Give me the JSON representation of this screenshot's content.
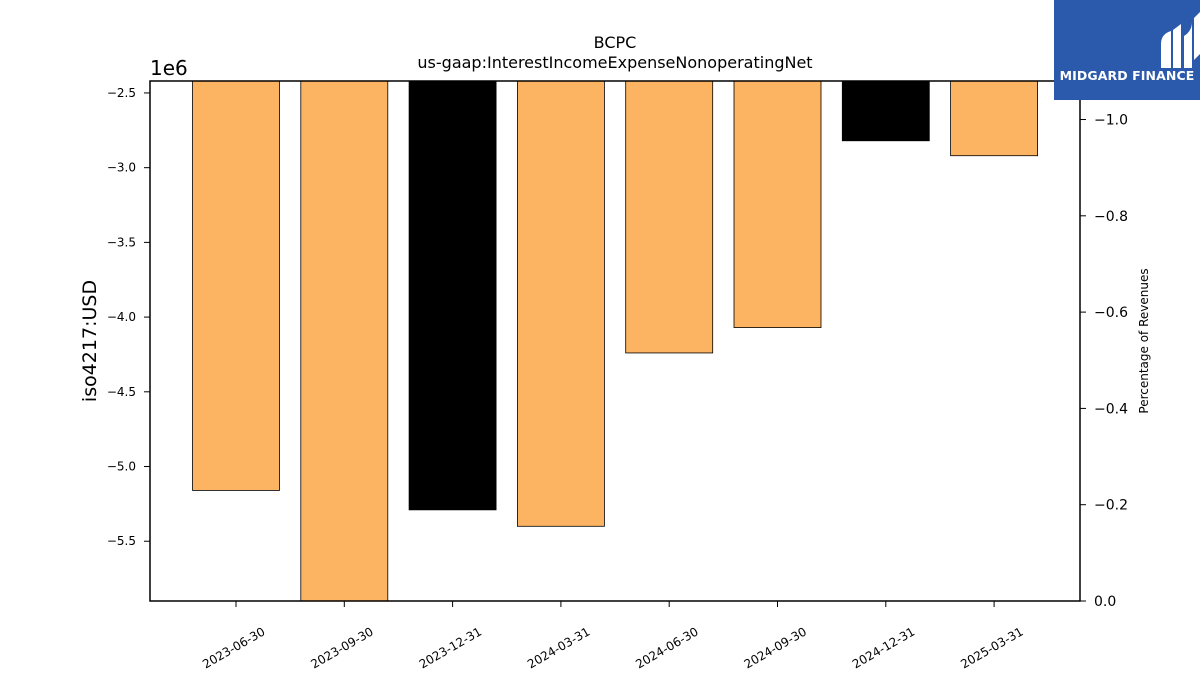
{
  "chart_data": {
    "type": "bar",
    "title": "BCPC",
    "subtitle": "us-gaap:InterestIncomeExpenseNonoperatingNet",
    "ylabel": "iso4217:USD",
    "y2label": "Percentage of Revenues",
    "offset_label": "1e6",
    "categories": [
      "2023-06-30",
      "2023-09-30",
      "2023-12-31",
      "2024-03-31",
      "2024-06-30",
      "2024-09-30",
      "2024-12-31",
      "2025-03-31"
    ],
    "values": [
      -5160000,
      -5900000,
      -5290000,
      -5400000,
      -4240000,
      -4070000,
      -2820000,
      -2920000
    ],
    "bar_colors": [
      "#fdb462",
      "#fdb462",
      "#000000",
      "#fdb462",
      "#fdb462",
      "#fdb462",
      "#000000",
      "#fdb462"
    ],
    "ylim": [
      -5900000,
      -2420000
    ],
    "y_ticks": [
      -2500000,
      -3000000,
      -3500000,
      -4000000,
      -4500000,
      -5000000,
      -5500000
    ],
    "y_tick_labels": [
      "−2.5",
      "−3.0",
      "−3.5",
      "−4.0",
      "−4.5",
      "−5.0",
      "−5.5"
    ],
    "y2lim": [
      0,
      -1.08
    ],
    "y2_ticks": [
      -1.0,
      -0.8,
      -0.6,
      -0.4,
      -0.2,
      0.0
    ],
    "y2_tick_labels": [
      "−1.0",
      "−0.8",
      "−0.6",
      "−0.4",
      "−0.2",
      "0.0"
    ],
    "grid": false
  },
  "logo": {
    "text": "MIDGARD FINANCE",
    "brand_color": "#2b5aad"
  }
}
